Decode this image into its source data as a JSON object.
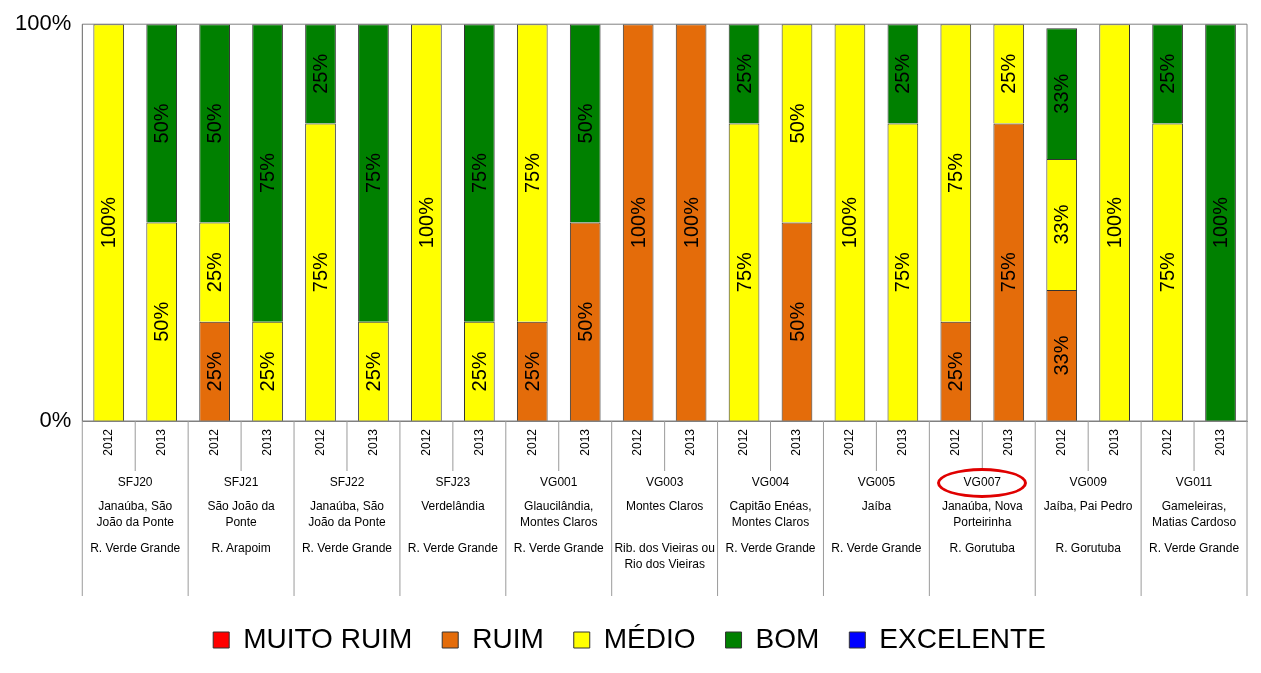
{
  "chart_data": {
    "type": "bar",
    "stacked": true,
    "categories": [
      "2012",
      "2013",
      "2012",
      "2013",
      "2012",
      "2013",
      "2012",
      "2013",
      "2012",
      "2013",
      "2012",
      "2013",
      "2012",
      "2013",
      "2012",
      "2013",
      "2012",
      "2013",
      "2012",
      "2013",
      "2012",
      "2013"
    ],
    "series": [
      {
        "name": "MUITO RUIM",
        "color": "#ff0000",
        "values": [
          0,
          0,
          0,
          0,
          0,
          0,
          0,
          0,
          0,
          0,
          0,
          0,
          0,
          0,
          0,
          0,
          0,
          0,
          0,
          0,
          0,
          0
        ]
      },
      {
        "name": "RUIM",
        "color": "#e46c0a",
        "values": [
          0,
          0,
          25,
          0,
          0,
          0,
          0,
          0,
          25,
          50,
          100,
          100,
          0,
          50,
          0,
          0,
          25,
          75,
          33,
          0,
          0,
          0
        ],
        "value_labels": [
          null,
          null,
          "25%",
          null,
          null,
          null,
          null,
          null,
          "25%",
          "50%",
          "100%",
          "100%",
          null,
          "50%",
          null,
          null,
          "25%",
          "75%",
          "33%",
          null,
          null,
          null
        ]
      },
      {
        "name": "MÉDIO",
        "color": "#ffff00",
        "values": [
          100,
          50,
          25,
          25,
          75,
          25,
          100,
          25,
          75,
          0,
          0,
          0,
          75,
          50,
          100,
          75,
          75,
          25,
          33,
          100,
          75,
          0
        ],
        "value_labels": [
          "100%",
          "50%",
          "25%",
          "25%",
          "75%",
          "25%",
          "100%",
          "25%",
          "75%",
          null,
          null,
          null,
          "75%",
          "50%",
          "100%",
          "75%",
          "75%",
          "25%",
          "33%",
          "100%",
          "75%",
          null
        ]
      },
      {
        "name": "BOM",
        "color": "#008000",
        "values": [
          0,
          50,
          50,
          75,
          25,
          75,
          0,
          75,
          0,
          50,
          0,
          0,
          25,
          0,
          0,
          25,
          0,
          0,
          33,
          0,
          25,
          100
        ],
        "value_labels": [
          null,
          "50%",
          "50%",
          "75%",
          "25%",
          "75%",
          null,
          "75%",
          null,
          "50%",
          null,
          null,
          "25%",
          null,
          null,
          "25%",
          null,
          null,
          "33%",
          null,
          "25%",
          "100%"
        ]
      },
      {
        "name": "EXCELENTE",
        "color": "#0000ff",
        "values": [
          0,
          0,
          0,
          0,
          0,
          0,
          0,
          0,
          0,
          0,
          0,
          0,
          0,
          0,
          0,
          0,
          0,
          0,
          0,
          0,
          0,
          0
        ]
      }
    ],
    "ylim": [
      0,
      100
    ],
    "yticks": [
      {
        "value": 0,
        "label": "0%"
      },
      {
        "value": 100,
        "label": "100%"
      }
    ],
    "grid": false,
    "legend": "bottom",
    "annotations": [
      "SFJ20",
      "Janaúba, São João da Ponte",
      "R. Verde Grande",
      "SFJ21",
      "São João da Ponte",
      "R. Arapoim",
      "SFJ22",
      "Janaúba, São João da Ponte",
      "R. Verde Grande",
      "SFJ23",
      "Verdelândia",
      "R. Verde Grande",
      "VG001",
      "Glaucilândia, Montes Claros",
      "R. Verde Grande",
      "VG003",
      "Montes Claros",
      "Rib. dos Vieiras ou Rio dos Vieiras",
      "VG004",
      "Capitão Enéas, Montes Claros",
      "R. Verde Grande",
      "VG005",
      "Jaíba",
      "R. Verde Grande",
      "VG007",
      "Janaúba, Nova Porteirinha",
      "R. Gorutuba",
      "VG009",
      "Jaíba, Pai Pedro",
      "R. Gorutuba",
      "VG011",
      "Gameleiras, Matias Cardoso",
      "R. Verde Grande"
    ]
  }
}
